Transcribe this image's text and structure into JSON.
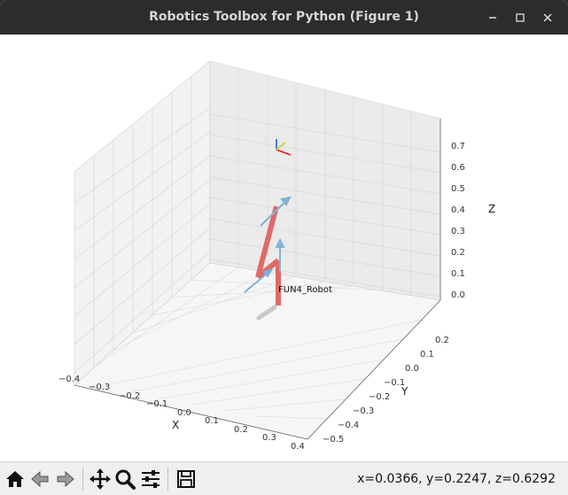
{
  "window": {
    "title": "Robotics Toolbox for Python (Figure 1)"
  },
  "plot": {
    "robot_label": "FUN4_Robot",
    "axes": {
      "x_label": "X",
      "y_label": "Y",
      "z_label": "Z",
      "x_ticks": [
        "−0.4",
        "−0.3",
        "−0.2",
        "−0.1",
        "0.0",
        "0.1",
        "0.2",
        "0.3",
        "0.4"
      ],
      "y_ticks": [
        "−0.5",
        "−0.4",
        "−0.3",
        "−0.2",
        "−0.1",
        "0.0",
        "0.1",
        "0.2"
      ],
      "z_ticks": [
        "0.0",
        "0.1",
        "0.2",
        "0.3",
        "0.4",
        "0.5",
        "0.6",
        "0.7"
      ]
    },
    "colors": {
      "link": "#e06a6a",
      "joint_axis": "#7fb3d9",
      "frame_x": "#e8313a",
      "frame_y": "#c9d63a",
      "frame_z": "#3a7fe8",
      "shadow": "#c8c8c8"
    }
  },
  "toolbar": {
    "buttons": [
      {
        "name": "home-button",
        "icon": "home-icon"
      },
      {
        "name": "back-button",
        "icon": "arrow-left-icon"
      },
      {
        "name": "forward-button",
        "icon": "arrow-right-icon"
      },
      {
        "name": "pan-button",
        "icon": "move-icon"
      },
      {
        "name": "zoom-button",
        "icon": "magnifier-icon"
      },
      {
        "name": "configure-subplots-button",
        "icon": "sliders-icon"
      },
      {
        "name": "save-button",
        "icon": "floppy-icon"
      }
    ],
    "coordinates": "x=0.0366, y=0.2247, z=0.6292"
  }
}
